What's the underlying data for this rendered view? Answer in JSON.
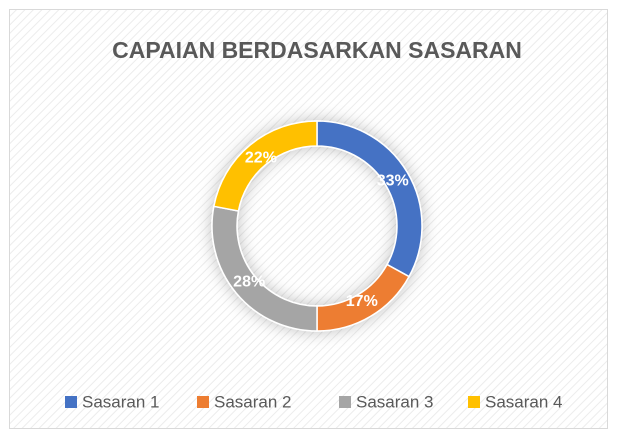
{
  "chart_data": {
    "type": "donut",
    "title": "CAPAIAN BERDASARKAN SASARAN",
    "categories": [
      "Sasaran 1",
      "Sasaran 2",
      "Sasaran 3",
      "Sasaran 4"
    ],
    "values": [
      33,
      17,
      28,
      22
    ],
    "value_labels": [
      "33%",
      "17%",
      "28%",
      "22%"
    ],
    "colors": [
      "#4472c4",
      "#ed7d31",
      "#a5a5a5",
      "#ffc000"
    ],
    "legend": "bottom"
  }
}
